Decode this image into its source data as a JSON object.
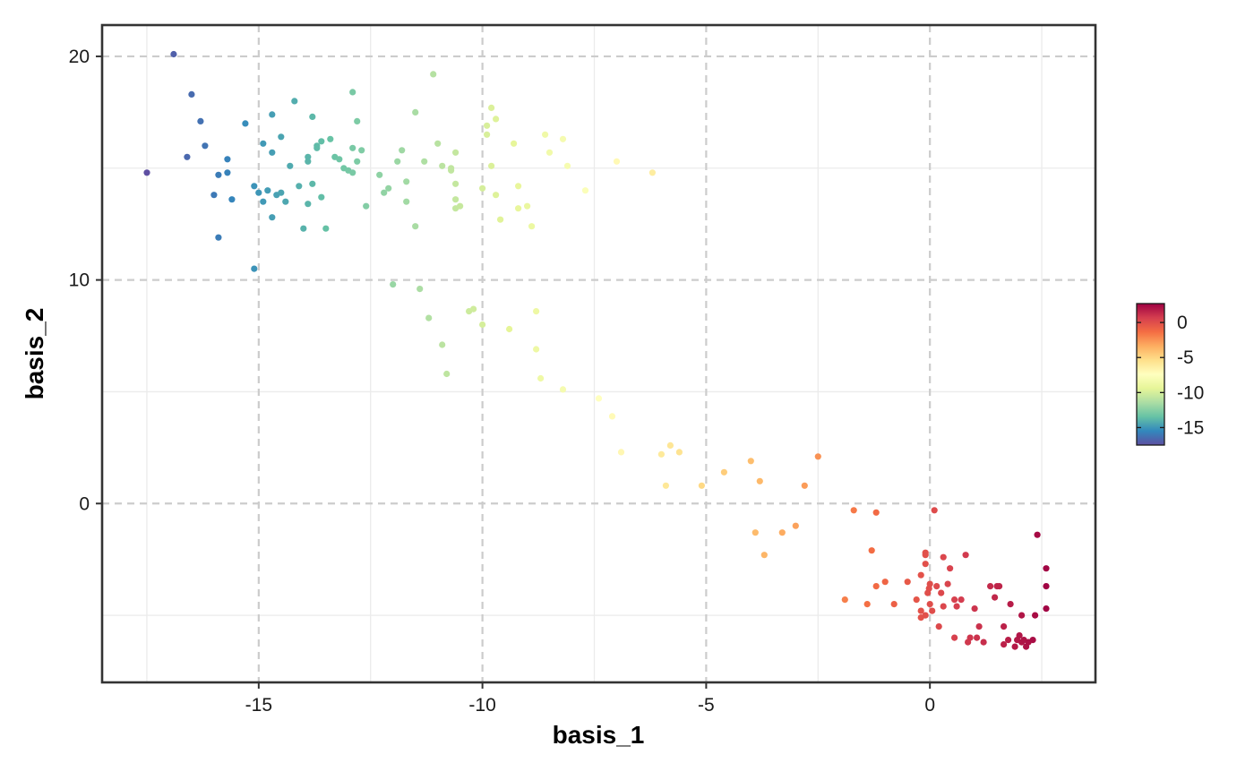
{
  "chart_data": {
    "type": "scatter",
    "title": "",
    "xlabel": "basis_1",
    "ylabel": "basis_2",
    "xlim": [
      -18.5,
      3.7
    ],
    "ylim": [
      -8.0,
      21.4
    ],
    "xticks": [
      -15,
      -10,
      -5,
      0
    ],
    "xtick_labels": [
      "-15",
      "-10",
      "-5",
      "0"
    ],
    "yticks": [
      0,
      10,
      20
    ],
    "ytick_labels": [
      "0",
      "10",
      "20"
    ],
    "minor_xticks": [
      -17.5,
      -12.5,
      -7.5,
      -2.5,
      2.5
    ],
    "minor_yticks": [
      -5,
      5,
      15
    ],
    "grid": true,
    "major_grid_style": "dashed",
    "colorscale": {
      "palette": "Spectral",
      "stops": [
        "#5E4FA2",
        "#3288BD",
        "#66C2A5",
        "#ABDDA4",
        "#E6F598",
        "#FFFFBF",
        "#FEE08B",
        "#FDAE61",
        "#F46D43",
        "#D53E4F",
        "#9E0142"
      ],
      "min": -17.5,
      "max": 2.7,
      "ticks": [
        0,
        -5,
        -10,
        -15
      ],
      "tick_labels": [
        "0",
        "-5",
        "-10",
        "-15"
      ],
      "legend_position": "right"
    },
    "color_variable": "basis_1",
    "points": [
      [
        -17.5,
        14.8
      ],
      [
        -16.9,
        20.1
      ],
      [
        -16.6,
        15.5
      ],
      [
        -16.5,
        18.3
      ],
      [
        -16.3,
        17.1
      ],
      [
        -16.2,
        16.0
      ],
      [
        -16.0,
        13.8
      ],
      [
        -15.9,
        14.7
      ],
      [
        -15.9,
        11.9
      ],
      [
        -15.7,
        15.4
      ],
      [
        -15.7,
        14.8
      ],
      [
        -15.6,
        13.6
      ],
      [
        -15.3,
        17.0
      ],
      [
        -15.1,
        10.5
      ],
      [
        -15.1,
        14.2
      ],
      [
        -15.0,
        13.9
      ],
      [
        -14.9,
        16.1
      ],
      [
        -14.9,
        13.5
      ],
      [
        -14.8,
        14.0
      ],
      [
        -14.7,
        15.7
      ],
      [
        -14.7,
        12.8
      ],
      [
        -14.7,
        17.4
      ],
      [
        -14.6,
        13.8
      ],
      [
        -14.5,
        16.4
      ],
      [
        -14.5,
        13.9
      ],
      [
        -14.4,
        13.5
      ],
      [
        -14.3,
        15.1
      ],
      [
        -14.2,
        18.0
      ],
      [
        -14.1,
        14.2
      ],
      [
        -14.0,
        12.3
      ],
      [
        -13.9,
        13.4
      ],
      [
        -13.9,
        15.5
      ],
      [
        -13.9,
        15.3
      ],
      [
        -13.8,
        14.3
      ],
      [
        -13.8,
        17.3
      ],
      [
        -13.7,
        16.0
      ],
      [
        -13.7,
        15.9
      ],
      [
        -13.6,
        16.2
      ],
      [
        -13.6,
        13.7
      ],
      [
        -13.5,
        12.3
      ],
      [
        -13.4,
        16.3
      ],
      [
        -13.3,
        15.5
      ],
      [
        -13.2,
        15.4
      ],
      [
        -13.1,
        15.0
      ],
      [
        -13.0,
        14.9
      ],
      [
        -12.9,
        18.4
      ],
      [
        -12.9,
        15.9
      ],
      [
        -12.9,
        14.8
      ],
      [
        -12.8,
        15.3
      ],
      [
        -12.8,
        17.1
      ],
      [
        -12.7,
        15.8
      ],
      [
        -12.6,
        13.3
      ],
      [
        -12.3,
        14.7
      ],
      [
        -12.2,
        13.9
      ],
      [
        -12.1,
        14.1
      ],
      [
        -12.0,
        9.8
      ],
      [
        -11.9,
        15.3
      ],
      [
        -11.8,
        15.8
      ],
      [
        -11.7,
        14.4
      ],
      [
        -11.7,
        13.5
      ],
      [
        -11.5,
        17.5
      ],
      [
        -11.5,
        12.4
      ],
      [
        -11.4,
        9.6
      ],
      [
        -11.3,
        15.3
      ],
      [
        -11.2,
        8.3
      ],
      [
        -11.1,
        19.2
      ],
      [
        -11.0,
        16.1
      ],
      [
        -10.9,
        7.1
      ],
      [
        -10.9,
        15.1
      ],
      [
        -10.8,
        5.8
      ],
      [
        -10.7,
        15.0
      ],
      [
        -10.7,
        14.9
      ],
      [
        -10.6,
        15.7
      ],
      [
        -10.6,
        14.3
      ],
      [
        -10.6,
        13.6
      ],
      [
        -10.6,
        13.2
      ],
      [
        -10.5,
        13.3
      ],
      [
        -10.3,
        8.6
      ],
      [
        -10.2,
        8.7
      ],
      [
        -10.0,
        8.0
      ],
      [
        -10.0,
        14.1
      ],
      [
        -9.9,
        16.9
      ],
      [
        -9.9,
        16.5
      ],
      [
        -9.8,
        17.7
      ],
      [
        -9.8,
        15.1
      ],
      [
        -9.7,
        17.2
      ],
      [
        -9.7,
        13.8
      ],
      [
        -9.6,
        12.7
      ],
      [
        -9.4,
        7.8
      ],
      [
        -9.3,
        16.1
      ],
      [
        -9.2,
        13.2
      ],
      [
        -9.2,
        14.2
      ],
      [
        -9.0,
        13.3
      ],
      [
        -8.9,
        12.4
      ],
      [
        -8.8,
        8.6
      ],
      [
        -8.8,
        6.9
      ],
      [
        -8.7,
        5.6
      ],
      [
        -8.6,
        16.5
      ],
      [
        -8.5,
        15.7
      ],
      [
        -8.2,
        16.3
      ],
      [
        -8.2,
        5.1
      ],
      [
        -8.1,
        15.1
      ],
      [
        -7.7,
        14.0
      ],
      [
        -7.4,
        4.7
      ],
      [
        -7.1,
        3.9
      ],
      [
        -7.0,
        15.3
      ],
      [
        -6.9,
        2.3
      ],
      [
        -6.2,
        14.8
      ],
      [
        -6.0,
        2.2
      ],
      [
        -5.9,
        0.8
      ],
      [
        -5.8,
        2.6
      ],
      [
        -5.6,
        2.3
      ],
      [
        -5.1,
        0.8
      ],
      [
        -4.6,
        1.4
      ],
      [
        -4.0,
        1.9
      ],
      [
        -3.9,
        -1.3
      ],
      [
        -3.8,
        1.0
      ],
      [
        -3.7,
        -2.3
      ],
      [
        -3.3,
        -1.3
      ],
      [
        -3.0,
        -1.0
      ],
      [
        -2.8,
        0.8
      ],
      [
        -2.5,
        2.1
      ],
      [
        -1.9,
        -4.3
      ],
      [
        -1.7,
        -0.3
      ],
      [
        -1.4,
        -4.5
      ],
      [
        -1.3,
        -2.1
      ],
      [
        -1.2,
        -3.7
      ],
      [
        -1.2,
        -0.4
      ],
      [
        -1.0,
        -3.5
      ],
      [
        -0.8,
        -4.5
      ],
      [
        -0.5,
        -3.5
      ],
      [
        -0.3,
        -4.3
      ],
      [
        -0.2,
        -4.8
      ],
      [
        -0.2,
        -5.1
      ],
      [
        -0.2,
        -3.2
      ],
      [
        -0.1,
        -2.7
      ],
      [
        -0.1,
        -2.3
      ],
      [
        -0.1,
        -5.0
      ],
      [
        -0.1,
        -2.2
      ],
      [
        -0.05,
        -4.0
      ],
      [
        -0.02,
        -3.8
      ],
      [
        0.0,
        -4.5
      ],
      [
        0.0,
        -3.6
      ],
      [
        0.05,
        -4.8
      ],
      [
        0.1,
        -0.3
      ],
      [
        0.15,
        -3.7
      ],
      [
        0.2,
        -5.5
      ],
      [
        0.25,
        -4.0
      ],
      [
        0.3,
        -2.4
      ],
      [
        0.3,
        -4.6
      ],
      [
        0.4,
        -3.6
      ],
      [
        0.45,
        -2.9
      ],
      [
        0.55,
        -6.0
      ],
      [
        0.55,
        -4.3
      ],
      [
        0.6,
        -4.6
      ],
      [
        0.7,
        -4.3
      ],
      [
        0.8,
        -2.3
      ],
      [
        0.85,
        -6.2
      ],
      [
        0.9,
        -6.0
      ],
      [
        1.0,
        -4.7
      ],
      [
        1.05,
        -6.0
      ],
      [
        1.1,
        -5.5
      ],
      [
        1.2,
        -6.2
      ],
      [
        1.35,
        -3.7
      ],
      [
        1.45,
        -4.2
      ],
      [
        1.5,
        -3.7
      ],
      [
        1.55,
        -3.7
      ],
      [
        1.65,
        -6.3
      ],
      [
        1.65,
        -5.5
      ],
      [
        1.75,
        -6.1
      ],
      [
        1.8,
        -4.5
      ],
      [
        1.9,
        -6.4
      ],
      [
        1.95,
        -6.1
      ],
      [
        2.0,
        -5.9
      ],
      [
        2.05,
        -6.2
      ],
      [
        2.1,
        -6.1
      ],
      [
        2.15,
        -6.4
      ],
      [
        2.2,
        -6.2
      ],
      [
        2.3,
        -6.1
      ],
      [
        2.4,
        -1.4
      ],
      [
        2.6,
        -2.9
      ],
      [
        2.6,
        -3.7
      ],
      [
        2.6,
        -4.7
      ],
      [
        2.35,
        -5.0
      ],
      [
        2.05,
        -5.0
      ]
    ]
  }
}
